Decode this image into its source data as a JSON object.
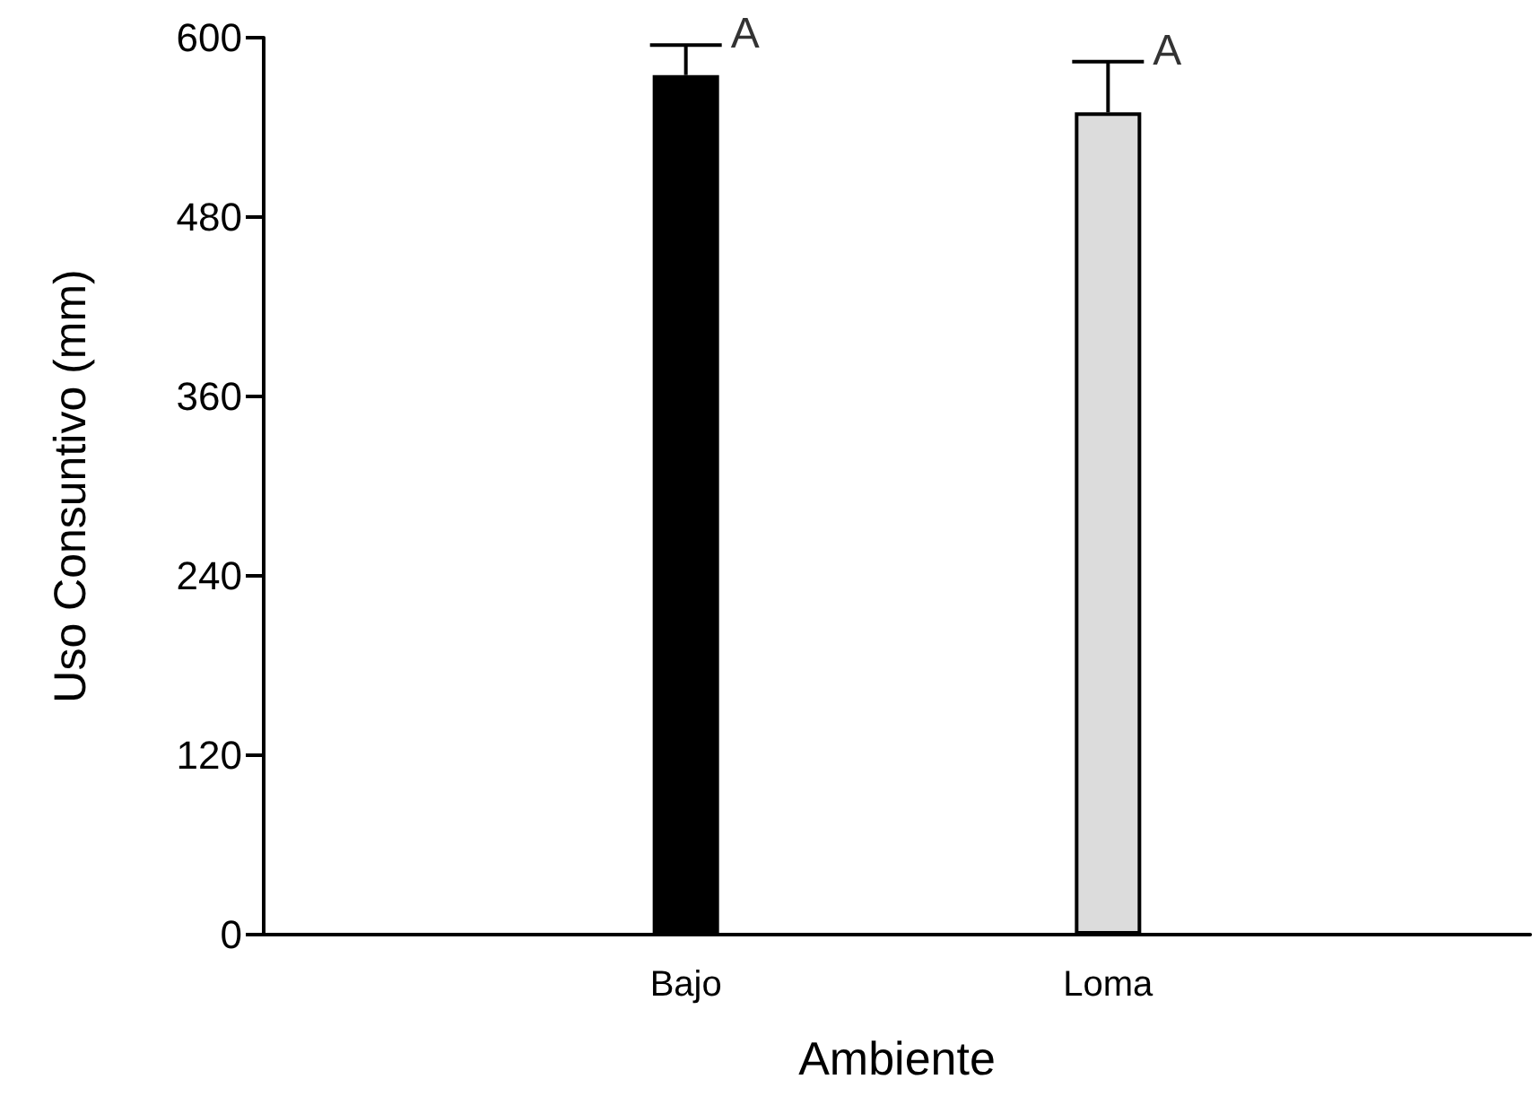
{
  "chart_data": {
    "type": "bar",
    "xlabel": "Ambiente",
    "ylabel": "Uso Consuntivo (mm)",
    "categories": [
      "Bajo",
      "Loma"
    ],
    "values": [
      575,
      550
    ],
    "colors": [
      "#000000",
      "#dcdcdc"
    ],
    "errors": [
      [
        575,
        595
      ],
      [
        550,
        584
      ]
    ],
    "ylim": [
      0,
      600
    ],
    "yticks": [
      0,
      120,
      240,
      360,
      480,
      600
    ],
    "annotations": [
      {
        "text": "A",
        "x": "Bajo",
        "y": 595
      },
      {
        "text": "A",
        "x": "Loma",
        "y": 584
      }
    ],
    "grid": false
  }
}
